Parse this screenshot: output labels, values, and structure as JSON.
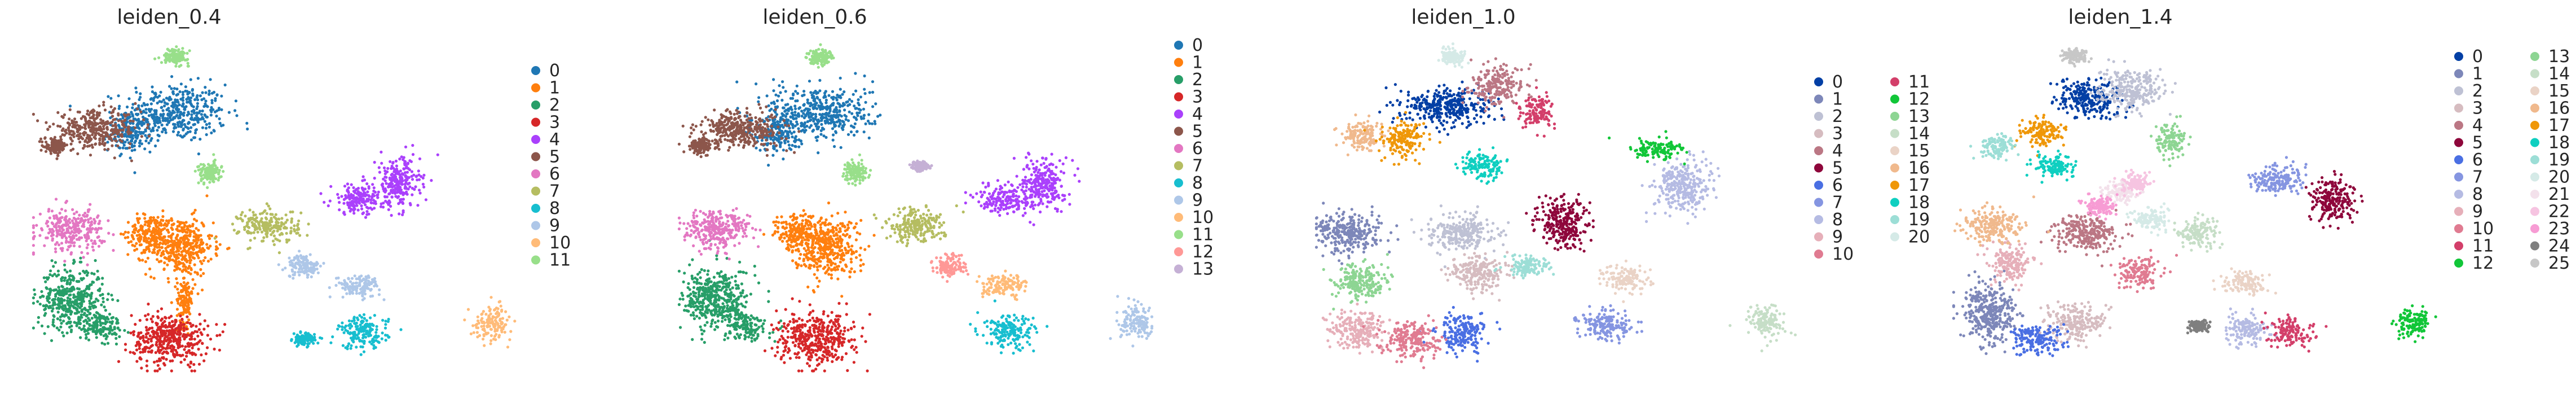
{
  "chart_data": [
    {
      "type": "scatter",
      "title": "leiden_0.4",
      "xlabel": "",
      "ylabel": "",
      "legend_columns": 1,
      "colors": [
        "#1f77b4",
        "#ff7f0e",
        "#279e68",
        "#d62728",
        "#aa40fc",
        "#8c564b",
        "#e377c2",
        "#b5bd61",
        "#17becf",
        "#aec7e8",
        "#ffbb78",
        "#98df8a"
      ],
      "categories": [
        "0",
        "1",
        "2",
        "3",
        "4",
        "5",
        "6",
        "7",
        "8",
        "9",
        "10",
        "11"
      ],
      "clusters": [
        {
          "label": "0",
          "parts": [
            [
              0.29,
              0.78,
              0.095,
              0.078
            ],
            [
              0.2,
              0.72,
              0.04,
              0.05
            ]
          ]
        },
        {
          "label": "1",
          "parts": [
            [
              0.3,
              0.38,
              0.06,
              0.08
            ],
            [
              0.24,
              0.42,
              0.04,
              0.05
            ],
            [
              0.31,
              0.22,
              0.015,
              0.07
            ]
          ]
        },
        {
          "label": "2",
          "parts": [
            [
              0.08,
              0.22,
              0.06,
              0.085
            ],
            [
              0.14,
              0.14,
              0.04,
              0.04
            ]
          ]
        },
        {
          "label": "3",
          "parts": [
            [
              0.28,
              0.1,
              0.07,
              0.07
            ]
          ]
        },
        {
          "label": "4",
          "parts": [
            [
              0.74,
              0.57,
              0.04,
              0.07
            ],
            [
              0.66,
              0.52,
              0.05,
              0.04
            ]
          ]
        },
        {
          "label": "5",
          "parts": [
            [
              0.13,
              0.73,
              0.08,
              0.05
            ],
            [
              0.05,
              0.68,
              0.02,
              0.02
            ]
          ]
        },
        {
          "label": "6",
          "parts": [
            [
              0.08,
              0.43,
              0.06,
              0.055
            ]
          ]
        },
        {
          "label": "7",
          "parts": [
            [
              0.48,
              0.44,
              0.055,
              0.045
            ]
          ]
        },
        {
          "label": "8",
          "parts": [
            [
              0.67,
              0.12,
              0.045,
              0.045
            ],
            [
              0.55,
              0.1,
              0.02,
              0.015
            ]
          ]
        },
        {
          "label": "9",
          "parts": [
            [
              0.55,
              0.32,
              0.03,
              0.03
            ],
            [
              0.66,
              0.26,
              0.04,
              0.03
            ]
          ]
        },
        {
          "label": "10",
          "parts": [
            [
              0.93,
              0.15,
              0.035,
              0.045
            ]
          ]
        },
        {
          "label": "11",
          "parts": [
            [
              0.29,
              0.95,
              0.025,
              0.02
            ],
            [
              0.36,
              0.6,
              0.02,
              0.03
            ]
          ]
        }
      ]
    },
    {
      "type": "scatter",
      "title": "leiden_0.6",
      "xlabel": "",
      "ylabel": "",
      "legend_columns": 1,
      "colors": [
        "#1f77b4",
        "#ff7f0e",
        "#279e68",
        "#d62728",
        "#aa40fc",
        "#8c564b",
        "#e377c2",
        "#b5bd61",
        "#17becf",
        "#aec7e8",
        "#ffbb78",
        "#98df8a",
        "#ff9896",
        "#c5b0d5"
      ],
      "categories": [
        "0",
        "1",
        "2",
        "3",
        "4",
        "5",
        "6",
        "7",
        "8",
        "9",
        "10",
        "11",
        "12",
        "13"
      ],
      "clusters": [
        {
          "label": "0",
          "parts": [
            [
              0.29,
              0.78,
              0.095,
              0.078
            ],
            [
              0.2,
              0.72,
              0.04,
              0.05
            ]
          ]
        },
        {
          "label": "1",
          "parts": [
            [
              0.3,
              0.38,
              0.06,
              0.08
            ],
            [
              0.24,
              0.42,
              0.04,
              0.05
            ]
          ]
        },
        {
          "label": "2",
          "parts": [
            [
              0.08,
              0.22,
              0.06,
              0.085
            ],
            [
              0.14,
              0.14,
              0.04,
              0.04
            ]
          ]
        },
        {
          "label": "3",
          "parts": [
            [
              0.28,
              0.1,
              0.07,
              0.07
            ]
          ]
        },
        {
          "label": "4",
          "parts": [
            [
              0.74,
              0.57,
              0.04,
              0.07
            ],
            [
              0.66,
              0.52,
              0.05,
              0.04
            ]
          ]
        },
        {
          "label": "5",
          "parts": [
            [
              0.13,
              0.73,
              0.08,
              0.05
            ],
            [
              0.05,
              0.68,
              0.02,
              0.02
            ]
          ]
        },
        {
          "label": "6",
          "parts": [
            [
              0.08,
              0.43,
              0.06,
              0.055
            ]
          ]
        },
        {
          "label": "7",
          "parts": [
            [
              0.48,
              0.44,
              0.055,
              0.045
            ]
          ]
        },
        {
          "label": "8",
          "parts": [
            [
              0.67,
              0.12,
              0.045,
              0.045
            ]
          ]
        },
        {
          "label": "9",
          "parts": [
            [
              0.93,
              0.15,
              0.035,
              0.045
            ]
          ]
        },
        {
          "label": "10",
          "parts": [
            [
              0.66,
              0.26,
              0.04,
              0.03
            ]
          ]
        },
        {
          "label": "11",
          "parts": [
            [
              0.29,
              0.95,
              0.025,
              0.02
            ],
            [
              0.36,
              0.6,
              0.02,
              0.03
            ]
          ]
        },
        {
          "label": "12",
          "parts": [
            [
              0.55,
              0.32,
              0.03,
              0.03
            ]
          ]
        },
        {
          "label": "13",
          "parts": [
            [
              0.49,
              0.62,
              0.015,
              0.012
            ]
          ]
        }
      ]
    },
    {
      "type": "scatter",
      "title": "leiden_1.0",
      "xlabel": "",
      "ylabel": "",
      "legend_columns": 2,
      "colors": [
        "#023fa5",
        "#7d87b9",
        "#bec1d4",
        "#d6bcc0",
        "#bb7784",
        "#8e063b",
        "#4a6fe3",
        "#8595e1",
        "#b5bbe3",
        "#e6afb9",
        "#e07b91",
        "#d33f6a",
        "#11c638",
        "#8dd593",
        "#c6dec7",
        "#ead3c6",
        "#f0b98d",
        "#ef9708",
        "#0fcfc0",
        "#9cded6",
        "#d5eae7"
      ],
      "categories": [
        "0",
        "1",
        "2",
        "3",
        "4",
        "5",
        "6",
        "7",
        "8",
        "9",
        "10",
        "11",
        "12",
        "13",
        "14",
        "15",
        "16",
        "17",
        "18",
        "19",
        "20"
      ],
      "clusters": [
        {
          "label": "0",
          "parts": [
            [
              0.27,
              0.8,
              0.08,
              0.05
            ]
          ]
        },
        {
          "label": "1",
          "parts": [
            [
              0.07,
              0.42,
              0.06,
              0.055
            ]
          ]
        },
        {
          "label": "2",
          "parts": [
            [
              0.3,
              0.42,
              0.06,
              0.05
            ]
          ]
        },
        {
          "label": "3",
          "parts": [
            [
              0.33,
              0.3,
              0.05,
              0.05
            ]
          ]
        },
        {
          "label": "4",
          "parts": [
            [
              0.37,
              0.86,
              0.05,
              0.05
            ]
          ]
        },
        {
          "label": "5",
          "parts": [
            [
              0.5,
              0.45,
              0.045,
              0.07
            ]
          ]
        },
        {
          "label": "6",
          "parts": [
            [
              0.3,
              0.12,
              0.045,
              0.05
            ]
          ]
        },
        {
          "label": "7",
          "parts": [
            [
              0.59,
              0.14,
              0.05,
              0.04
            ]
          ]
        },
        {
          "label": "8",
          "parts": [
            [
              0.74,
              0.56,
              0.05,
              0.07
            ]
          ]
        },
        {
          "label": "9",
          "parts": [
            [
              0.09,
              0.13,
              0.05,
              0.05
            ]
          ]
        },
        {
          "label": "10",
          "parts": [
            [
              0.2,
              0.1,
              0.05,
              0.05
            ]
          ]
        },
        {
          "label": "11",
          "parts": [
            [
              0.45,
              0.78,
              0.03,
              0.05
            ]
          ]
        },
        {
          "label": "12",
          "parts": [
            [
              0.69,
              0.67,
              0.05,
              0.03
            ]
          ]
        },
        {
          "label": "13",
          "parts": [
            [
              0.09,
              0.27,
              0.05,
              0.05
            ]
          ]
        },
        {
          "label": "14",
          "parts": [
            [
              0.91,
              0.15,
              0.035,
              0.045
            ]
          ]
        },
        {
          "label": "15",
          "parts": [
            [
              0.63,
              0.28,
              0.04,
              0.04
            ]
          ]
        },
        {
          "label": "16",
          "parts": [
            [
              0.1,
              0.71,
              0.04,
              0.04
            ]
          ]
        },
        {
          "label": "17",
          "parts": [
            [
              0.18,
              0.7,
              0.04,
              0.05
            ]
          ]
        },
        {
          "label": "18",
          "parts": [
            [
              0.34,
              0.62,
              0.04,
              0.04
            ]
          ]
        },
        {
          "label": "19",
          "parts": [
            [
              0.43,
              0.32,
              0.04,
              0.03
            ]
          ]
        },
        {
          "label": "20",
          "parts": [
            [
              0.28,
              0.95,
              0.025,
              0.02
            ]
          ]
        }
      ]
    },
    {
      "type": "scatter",
      "title": "leiden_1.4",
      "xlabel": "",
      "ylabel": "",
      "legend_columns": 2,
      "colors": [
        "#023fa5",
        "#7d87b9",
        "#bec1d4",
        "#d6bcc0",
        "#bb7784",
        "#8e063b",
        "#4a6fe3",
        "#8595e1",
        "#b5bbe3",
        "#e6afb9",
        "#e07b91",
        "#d33f6a",
        "#11c638",
        "#8dd593",
        "#c6dec7",
        "#ead3c6",
        "#f0b98d",
        "#ef9708",
        "#0fcfc0",
        "#9cded6",
        "#d5eae7",
        "#f3e1eb",
        "#f6c4e1",
        "#f79cd4",
        "#7f7f7f",
        "#c7c7c7"
      ],
      "categories": [
        "0",
        "1",
        "2",
        "3",
        "4",
        "5",
        "6",
        "7",
        "8",
        "9",
        "10",
        "11",
        "12",
        "13",
        "14",
        "15",
        "16",
        "17",
        "18",
        "19",
        "20",
        "21",
        "22",
        "23",
        "24",
        "25"
      ],
      "clusters": [
        {
          "label": "0",
          "parts": [
            [
              0.28,
              0.82,
              0.06,
              0.05
            ]
          ]
        },
        {
          "label": "1",
          "parts": [
            [
              0.08,
              0.18,
              0.05,
              0.08
            ]
          ]
        },
        {
          "label": "2",
          "parts": [
            [
              0.36,
              0.85,
              0.06,
              0.05
            ]
          ]
        },
        {
          "label": "3",
          "parts": [
            [
              0.25,
              0.15,
              0.05,
              0.05
            ]
          ]
        },
        {
          "label": "4",
          "parts": [
            [
              0.27,
              0.42,
              0.06,
              0.05
            ]
          ]
        },
        {
          "label": "5",
          "parts": [
            [
              0.77,
              0.52,
              0.04,
              0.06
            ]
          ]
        },
        {
          "label": "6",
          "parts": [
            [
              0.17,
              0.1,
              0.05,
              0.04
            ]
          ]
        },
        {
          "label": "7",
          "parts": [
            [
              0.66,
              0.58,
              0.05,
              0.04
            ]
          ]
        },
        {
          "label": "8",
          "parts": [
            [
              0.6,
              0.13,
              0.04,
              0.04
            ]
          ]
        },
        {
          "label": "9",
          "parts": [
            [
              0.12,
              0.33,
              0.04,
              0.05
            ]
          ]
        },
        {
          "label": "10",
          "parts": [
            [
              0.38,
              0.3,
              0.04,
              0.04
            ]
          ]
        },
        {
          "label": "11",
          "parts": [
            [
              0.68,
              0.12,
              0.04,
              0.04
            ]
          ]
        },
        {
          "label": "12",
          "parts": [
            [
              0.93,
              0.15,
              0.03,
              0.04
            ]
          ]
        },
        {
          "label": "13",
          "parts": [
            [
              0.44,
              0.7,
              0.03,
              0.05
            ]
          ]
        },
        {
          "label": "14",
          "parts": [
            [
              0.5,
              0.42,
              0.04,
              0.04
            ]
          ]
        },
        {
          "label": "15",
          "parts": [
            [
              0.59,
              0.27,
              0.04,
              0.03
            ]
          ]
        },
        {
          "label": "16",
          "parts": [
            [
              0.08,
              0.44,
              0.05,
              0.05
            ]
          ]
        },
        {
          "label": "17",
          "parts": [
            [
              0.18,
              0.72,
              0.04,
              0.04
            ]
          ]
        },
        {
          "label": "18",
          "parts": [
            [
              0.21,
              0.62,
              0.04,
              0.03
            ]
          ]
        },
        {
          "label": "19",
          "parts": [
            [
              0.09,
              0.68,
              0.03,
              0.03
            ]
          ]
        },
        {
          "label": "20",
          "parts": [
            [
              0.4,
              0.46,
              0.03,
              0.03
            ]
          ]
        },
        {
          "label": "21",
          "parts": [
            [
              0.34,
              0.54,
              0.03,
              0.03
            ]
          ]
        },
        {
          "label": "22",
          "parts": [
            [
              0.37,
              0.57,
              0.025,
              0.03
            ]
          ]
        },
        {
          "label": "23",
          "parts": [
            [
              0.3,
              0.5,
              0.025,
              0.025
            ]
          ]
        },
        {
          "label": "24",
          "parts": [
            [
              0.5,
              0.14,
              0.02,
              0.015
            ]
          ]
        },
        {
          "label": "25",
          "parts": [
            [
              0.25,
              0.95,
              0.025,
              0.02
            ]
          ]
        }
      ]
    }
  ]
}
